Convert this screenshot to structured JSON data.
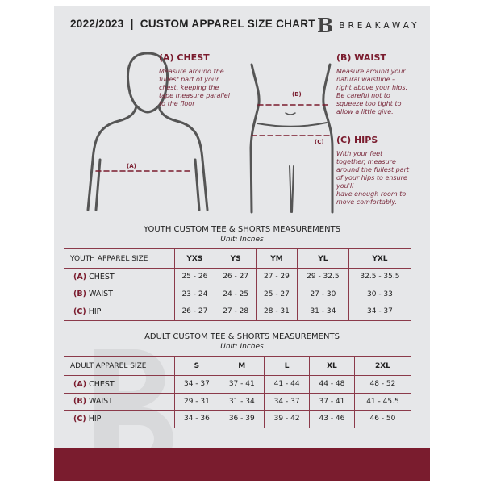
{
  "header": {
    "title": "2022/2023  |  CUSTOM APPAREL SIZE CHART",
    "brand": "BREAKAWAY",
    "logo_letter": "B"
  },
  "guide": {
    "chest": {
      "heading": "(A) CHEST",
      "text": [
        "Measure around the",
        "fullest part of your",
        "chest, keeping the",
        "tape measure parallel",
        "to the floor"
      ],
      "marker": "(A)"
    },
    "waist": {
      "heading": "(B) WAIST",
      "text": [
        "Measure around your",
        "natural waistline –",
        "right above your hips.",
        "Be careful not to",
        "squeeze too tight to",
        "allow a little give."
      ],
      "marker": "(B)"
    },
    "hips": {
      "heading": "(C) HIPS",
      "text": [
        "With your feet",
        "together, measure",
        "around the fullest part",
        "of your hips to ensure",
        "you'll",
        "have enough room to",
        "move comfortably."
      ],
      "marker": "(C)"
    }
  },
  "youth": {
    "title": "YOUTH CUSTOM TEE & SHORTS MEASUREMENTS",
    "unit": "Unit: Inches",
    "header": "YOUTH APPAREL SIZE",
    "sizes": [
      "YXS",
      "YS",
      "YM",
      "YL",
      "YXL"
    ],
    "rows": [
      {
        "letter": "(A)",
        "label": "CHEST",
        "values": [
          "25 - 26",
          "26 - 27",
          "27 - 29",
          "29 - 32.5",
          "32.5 - 35.5"
        ]
      },
      {
        "letter": "(B)",
        "label": "WAIST",
        "values": [
          "23 - 24",
          "24 - 25",
          "25 - 27",
          "27 - 30",
          "30 - 33"
        ]
      },
      {
        "letter": "(C)",
        "label": "HIP",
        "values": [
          "26 - 27",
          "27 - 28",
          "28 - 31",
          "31 - 34",
          "34 - 37"
        ]
      }
    ]
  },
  "adult": {
    "title": "ADULT CUSTOM TEE & SHORTS MEASUREMENTS",
    "unit": "Unit: Inches",
    "header": "ADULT APPAREL SIZE",
    "sizes": [
      "S",
      "M",
      "L",
      "XL",
      "2XL"
    ],
    "rows": [
      {
        "letter": "(A)",
        "label": "CHEST",
        "values": [
          "34 - 37",
          "37 - 41",
          "41 - 44",
          "44 - 48",
          "48 - 52"
        ]
      },
      {
        "letter": "(B)",
        "label": "WAIST",
        "values": [
          "29 - 31",
          "31 - 34",
          "34 - 37",
          "37 - 41",
          "41 - 45.5"
        ]
      },
      {
        "letter": "(C)",
        "label": "HIP",
        "values": [
          "34 - 36",
          "36 - 39",
          "39 - 42",
          "43 - 46",
          "46 - 50"
        ]
      }
    ]
  },
  "colors": {
    "accent": "#7a1c2e",
    "background": "#e6e7e9"
  }
}
